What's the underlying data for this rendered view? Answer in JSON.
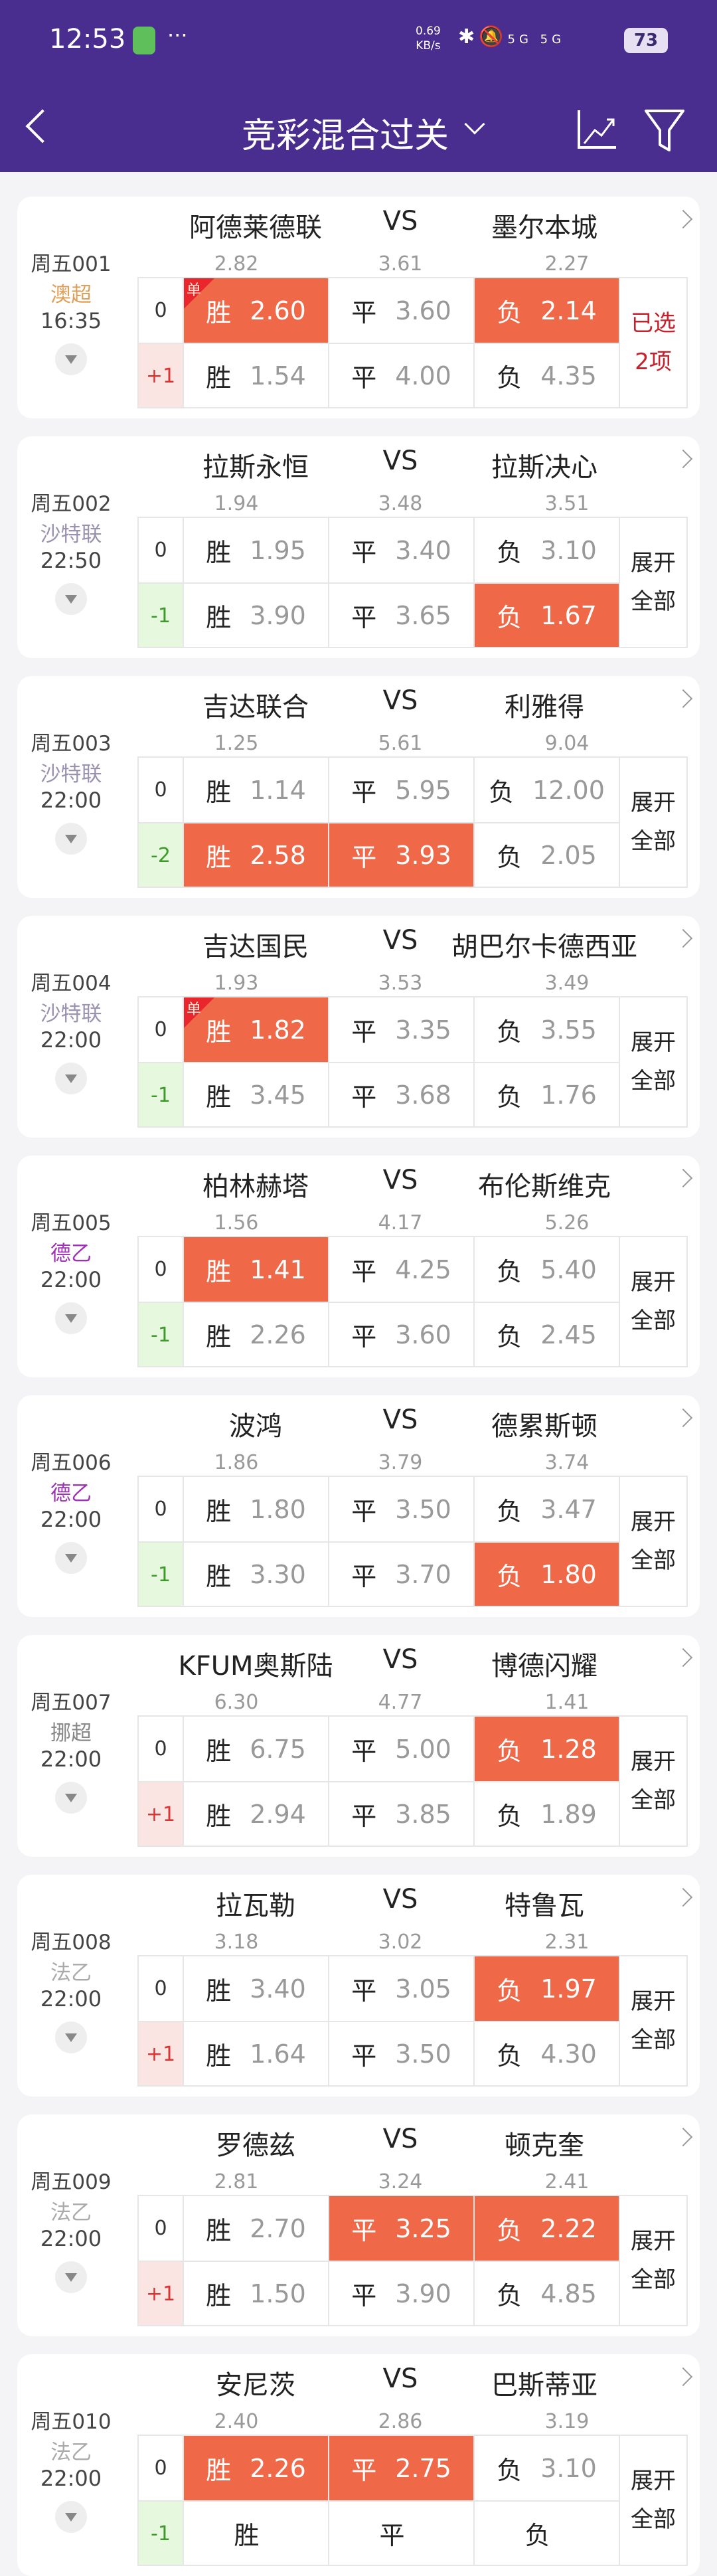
{
  "status_bar": {
    "time": "12:53",
    "net_speed": "0.69",
    "net_unit": "KB/s",
    "signal": "5G 5G",
    "battery": "73"
  },
  "header": {
    "title": "竞彩混合过关"
  },
  "colors": {
    "header": "#4a2e8f",
    "selected": "#ef6949",
    "handicap_neg": "#3c9a2a",
    "handicap_pos": "#dd3333"
  },
  "vs_label": "VS",
  "matches": [
    {
      "no": "周五001",
      "league": "澳超",
      "league_color": "#e0a05a",
      "time": "16:35",
      "home": "阿德莱德联",
      "away": "墨尔本城",
      "ref": [
        "2.82",
        "3.61",
        "2.27"
      ],
      "rows": [
        {
          "hc": "0",
          "odds": [
            {
              "l": "胜",
              "v": "2.60",
              "sel": true,
              "single": true
            },
            {
              "l": "平",
              "v": "3.60"
            },
            {
              "l": "负",
              "v": "2.14",
              "sel": true
            }
          ]
        },
        {
          "hc": "+1",
          "odds": [
            {
              "l": "胜",
              "v": "1.54"
            },
            {
              "l": "平",
              "v": "4.00"
            },
            {
              "l": "负",
              "v": "4.35"
            }
          ]
        }
      ],
      "side": "已选2项",
      "side_red": true
    },
    {
      "no": "周五002",
      "league": "沙特联",
      "league_color": "#9a92b0",
      "time": "22:50",
      "home": "拉斯永恒",
      "away": "拉斯决心",
      "ref": [
        "1.94",
        "3.48",
        "3.51"
      ],
      "rows": [
        {
          "hc": "0",
          "odds": [
            {
              "l": "胜",
              "v": "1.95"
            },
            {
              "l": "平",
              "v": "3.40"
            },
            {
              "l": "负",
              "v": "3.10"
            }
          ]
        },
        {
          "hc": "-1",
          "odds": [
            {
              "l": "胜",
              "v": "3.90"
            },
            {
              "l": "平",
              "v": "3.65"
            },
            {
              "l": "负",
              "v": "1.67",
              "sel": true
            }
          ]
        }
      ],
      "side": "展开全部"
    },
    {
      "no": "周五003",
      "league": "沙特联",
      "league_color": "#9a92b0",
      "time": "22:00",
      "home": "吉达联合",
      "away": "利雅得",
      "ref": [
        "1.25",
        "5.61",
        "9.04"
      ],
      "rows": [
        {
          "hc": "0",
          "odds": [
            {
              "l": "胜",
              "v": "1.14"
            },
            {
              "l": "平",
              "v": "5.95"
            },
            {
              "l": "负",
              "v": "12.00"
            }
          ]
        },
        {
          "hc": "-2",
          "odds": [
            {
              "l": "胜",
              "v": "2.58",
              "sel": true
            },
            {
              "l": "平",
              "v": "3.93",
              "sel": true
            },
            {
              "l": "负",
              "v": "2.05"
            }
          ]
        }
      ],
      "side": "展开全部"
    },
    {
      "no": "周五004",
      "league": "沙特联",
      "league_color": "#9a92b0",
      "time": "22:00",
      "home": "吉达国民",
      "away": "胡巴尔卡德西亚",
      "ref": [
        "1.93",
        "3.53",
        "3.49"
      ],
      "rows": [
        {
          "hc": "0",
          "odds": [
            {
              "l": "胜",
              "v": "1.82",
              "sel": true,
              "single": true
            },
            {
              "l": "平",
              "v": "3.35"
            },
            {
              "l": "负",
              "v": "3.55"
            }
          ]
        },
        {
          "hc": "-1",
          "odds": [
            {
              "l": "胜",
              "v": "3.45"
            },
            {
              "l": "平",
              "v": "3.68"
            },
            {
              "l": "负",
              "v": "1.76"
            }
          ]
        }
      ],
      "side": "展开全部"
    },
    {
      "no": "周五005",
      "league": "德乙",
      "league_color": "#a030b8",
      "time": "22:00",
      "home": "柏林赫塔",
      "away": "布伦斯维克",
      "ref": [
        "1.56",
        "4.17",
        "5.26"
      ],
      "rows": [
        {
          "hc": "0",
          "odds": [
            {
              "l": "胜",
              "v": "1.41",
              "sel": true
            },
            {
              "l": "平",
              "v": "4.25"
            },
            {
              "l": "负",
              "v": "5.40"
            }
          ]
        },
        {
          "hc": "-1",
          "odds": [
            {
              "l": "胜",
              "v": "2.26"
            },
            {
              "l": "平",
              "v": "3.60"
            },
            {
              "l": "负",
              "v": "2.45"
            }
          ]
        }
      ],
      "side": "展开全部"
    },
    {
      "no": "周五006",
      "league": "德乙",
      "league_color": "#a030b8",
      "time": "22:00",
      "home": "波鸿",
      "away": "德累斯顿",
      "ref": [
        "1.86",
        "3.79",
        "3.74"
      ],
      "rows": [
        {
          "hc": "0",
          "odds": [
            {
              "l": "胜",
              "v": "1.80"
            },
            {
              "l": "平",
              "v": "3.50"
            },
            {
              "l": "负",
              "v": "3.47"
            }
          ]
        },
        {
          "hc": "-1",
          "odds": [
            {
              "l": "胜",
              "v": "3.30"
            },
            {
              "l": "平",
              "v": "3.70"
            },
            {
              "l": "负",
              "v": "1.80",
              "sel": true
            }
          ]
        }
      ],
      "side": "展开全部"
    },
    {
      "no": "周五007",
      "league": "挪超",
      "league_color": "#888888",
      "time": "22:00",
      "home": "KFUM奥斯陆",
      "away": "博德闪耀",
      "ref": [
        "6.30",
        "4.77",
        "1.41"
      ],
      "rows": [
        {
          "hc": "0",
          "odds": [
            {
              "l": "胜",
              "v": "6.75"
            },
            {
              "l": "平",
              "v": "5.00"
            },
            {
              "l": "负",
              "v": "1.28",
              "sel": true
            }
          ]
        },
        {
          "hc": "+1",
          "odds": [
            {
              "l": "胜",
              "v": "2.94"
            },
            {
              "l": "平",
              "v": "3.85"
            },
            {
              "l": "负",
              "v": "1.89"
            }
          ]
        }
      ],
      "side": "展开全部"
    },
    {
      "no": "周五008",
      "league": "法乙",
      "league_color": "#aaaaaa",
      "time": "22:00",
      "home": "拉瓦勒",
      "away": "特鲁瓦",
      "ref": [
        "3.18",
        "3.02",
        "2.31"
      ],
      "rows": [
        {
          "hc": "0",
          "odds": [
            {
              "l": "胜",
              "v": "3.40"
            },
            {
              "l": "平",
              "v": "3.05"
            },
            {
              "l": "负",
              "v": "1.97",
              "sel": true
            }
          ]
        },
        {
          "hc": "+1",
          "odds": [
            {
              "l": "胜",
              "v": "1.64"
            },
            {
              "l": "平",
              "v": "3.50"
            },
            {
              "l": "负",
              "v": "4.30"
            }
          ]
        }
      ],
      "side": "展开全部"
    },
    {
      "no": "周五009",
      "league": "法乙",
      "league_color": "#aaaaaa",
      "time": "22:00",
      "home": "罗德兹",
      "away": "顿克奎",
      "ref": [
        "2.81",
        "3.24",
        "2.41"
      ],
      "rows": [
        {
          "hc": "0",
          "odds": [
            {
              "l": "胜",
              "v": "2.70"
            },
            {
              "l": "平",
              "v": "3.25",
              "sel": true
            },
            {
              "l": "负",
              "v": "2.22",
              "sel": true
            }
          ]
        },
        {
          "hc": "+1",
          "odds": [
            {
              "l": "胜",
              "v": "1.50"
            },
            {
              "l": "平",
              "v": "3.90"
            },
            {
              "l": "负",
              "v": "4.85"
            }
          ]
        }
      ],
      "side": "展开全部"
    },
    {
      "no": "周五010",
      "league": "法乙",
      "league_color": "#aaaaaa",
      "time": "22:00",
      "home": "安尼茨",
      "away": "巴斯蒂亚",
      "ref": [
        "2.40",
        "2.86",
        "3.19"
      ],
      "rows": [
        {
          "hc": "0",
          "odds": [
            {
              "l": "胜",
              "v": "2.26",
              "sel": true
            },
            {
              "l": "平",
              "v": "2.75",
              "sel": true
            },
            {
              "l": "负",
              "v": "3.10"
            }
          ]
        },
        {
          "hc": "-1",
          "odds": [
            {
              "l": "胜",
              "v": ""
            },
            {
              "l": "平",
              "v": ""
            },
            {
              "l": "负",
              "v": ""
            }
          ]
        }
      ],
      "side": "展开全部"
    }
  ]
}
